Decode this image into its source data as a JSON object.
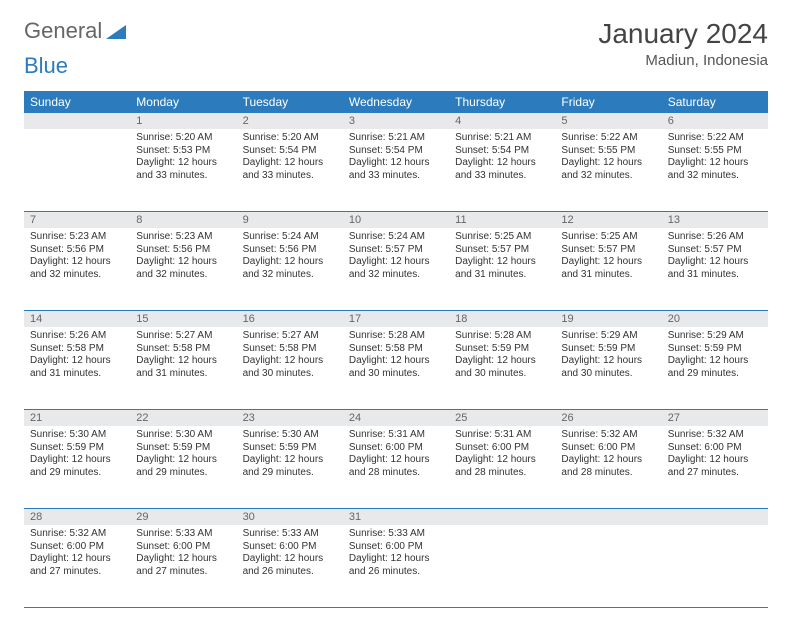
{
  "logo": {
    "text1": "General",
    "text2": "Blue"
  },
  "title": "January 2024",
  "location": "Madiun, Indonesia",
  "colors": {
    "header_bg": "#2b7bbd",
    "header_text": "#ffffff",
    "daynum_bg": "#e8e9ea",
    "border": "#2b7bbd",
    "text": "#333333"
  },
  "day_headers": [
    "Sunday",
    "Monday",
    "Tuesday",
    "Wednesday",
    "Thursday",
    "Friday",
    "Saturday"
  ],
  "weeks": [
    {
      "nums": [
        "",
        "1",
        "2",
        "3",
        "4",
        "5",
        "6"
      ],
      "cells": [
        null,
        {
          "sunrise": "Sunrise: 5:20 AM",
          "sunset": "Sunset: 5:53 PM",
          "day1": "Daylight: 12 hours",
          "day2": "and 33 minutes."
        },
        {
          "sunrise": "Sunrise: 5:20 AM",
          "sunset": "Sunset: 5:54 PM",
          "day1": "Daylight: 12 hours",
          "day2": "and 33 minutes."
        },
        {
          "sunrise": "Sunrise: 5:21 AM",
          "sunset": "Sunset: 5:54 PM",
          "day1": "Daylight: 12 hours",
          "day2": "and 33 minutes."
        },
        {
          "sunrise": "Sunrise: 5:21 AM",
          "sunset": "Sunset: 5:54 PM",
          "day1": "Daylight: 12 hours",
          "day2": "and 33 minutes."
        },
        {
          "sunrise": "Sunrise: 5:22 AM",
          "sunset": "Sunset: 5:55 PM",
          "day1": "Daylight: 12 hours",
          "day2": "and 32 minutes."
        },
        {
          "sunrise": "Sunrise: 5:22 AM",
          "sunset": "Sunset: 5:55 PM",
          "day1": "Daylight: 12 hours",
          "day2": "and 32 minutes."
        }
      ]
    },
    {
      "nums": [
        "7",
        "8",
        "9",
        "10",
        "11",
        "12",
        "13"
      ],
      "cells": [
        {
          "sunrise": "Sunrise: 5:23 AM",
          "sunset": "Sunset: 5:56 PM",
          "day1": "Daylight: 12 hours",
          "day2": "and 32 minutes."
        },
        {
          "sunrise": "Sunrise: 5:23 AM",
          "sunset": "Sunset: 5:56 PM",
          "day1": "Daylight: 12 hours",
          "day2": "and 32 minutes."
        },
        {
          "sunrise": "Sunrise: 5:24 AM",
          "sunset": "Sunset: 5:56 PM",
          "day1": "Daylight: 12 hours",
          "day2": "and 32 minutes."
        },
        {
          "sunrise": "Sunrise: 5:24 AM",
          "sunset": "Sunset: 5:57 PM",
          "day1": "Daylight: 12 hours",
          "day2": "and 32 minutes."
        },
        {
          "sunrise": "Sunrise: 5:25 AM",
          "sunset": "Sunset: 5:57 PM",
          "day1": "Daylight: 12 hours",
          "day2": "and 31 minutes."
        },
        {
          "sunrise": "Sunrise: 5:25 AM",
          "sunset": "Sunset: 5:57 PM",
          "day1": "Daylight: 12 hours",
          "day2": "and 31 minutes."
        },
        {
          "sunrise": "Sunrise: 5:26 AM",
          "sunset": "Sunset: 5:57 PM",
          "day1": "Daylight: 12 hours",
          "day2": "and 31 minutes."
        }
      ]
    },
    {
      "nums": [
        "14",
        "15",
        "16",
        "17",
        "18",
        "19",
        "20"
      ],
      "cells": [
        {
          "sunrise": "Sunrise: 5:26 AM",
          "sunset": "Sunset: 5:58 PM",
          "day1": "Daylight: 12 hours",
          "day2": "and 31 minutes."
        },
        {
          "sunrise": "Sunrise: 5:27 AM",
          "sunset": "Sunset: 5:58 PM",
          "day1": "Daylight: 12 hours",
          "day2": "and 31 minutes."
        },
        {
          "sunrise": "Sunrise: 5:27 AM",
          "sunset": "Sunset: 5:58 PM",
          "day1": "Daylight: 12 hours",
          "day2": "and 30 minutes."
        },
        {
          "sunrise": "Sunrise: 5:28 AM",
          "sunset": "Sunset: 5:58 PM",
          "day1": "Daylight: 12 hours",
          "day2": "and 30 minutes."
        },
        {
          "sunrise": "Sunrise: 5:28 AM",
          "sunset": "Sunset: 5:59 PM",
          "day1": "Daylight: 12 hours",
          "day2": "and 30 minutes."
        },
        {
          "sunrise": "Sunrise: 5:29 AM",
          "sunset": "Sunset: 5:59 PM",
          "day1": "Daylight: 12 hours",
          "day2": "and 30 minutes."
        },
        {
          "sunrise": "Sunrise: 5:29 AM",
          "sunset": "Sunset: 5:59 PM",
          "day1": "Daylight: 12 hours",
          "day2": "and 29 minutes."
        }
      ]
    },
    {
      "nums": [
        "21",
        "22",
        "23",
        "24",
        "25",
        "26",
        "27"
      ],
      "cells": [
        {
          "sunrise": "Sunrise: 5:30 AM",
          "sunset": "Sunset: 5:59 PM",
          "day1": "Daylight: 12 hours",
          "day2": "and 29 minutes."
        },
        {
          "sunrise": "Sunrise: 5:30 AM",
          "sunset": "Sunset: 5:59 PM",
          "day1": "Daylight: 12 hours",
          "day2": "and 29 minutes."
        },
        {
          "sunrise": "Sunrise: 5:30 AM",
          "sunset": "Sunset: 5:59 PM",
          "day1": "Daylight: 12 hours",
          "day2": "and 29 minutes."
        },
        {
          "sunrise": "Sunrise: 5:31 AM",
          "sunset": "Sunset: 6:00 PM",
          "day1": "Daylight: 12 hours",
          "day2": "and 28 minutes."
        },
        {
          "sunrise": "Sunrise: 5:31 AM",
          "sunset": "Sunset: 6:00 PM",
          "day1": "Daylight: 12 hours",
          "day2": "and 28 minutes."
        },
        {
          "sunrise": "Sunrise: 5:32 AM",
          "sunset": "Sunset: 6:00 PM",
          "day1": "Daylight: 12 hours",
          "day2": "and 28 minutes."
        },
        {
          "sunrise": "Sunrise: 5:32 AM",
          "sunset": "Sunset: 6:00 PM",
          "day1": "Daylight: 12 hours",
          "day2": "and 27 minutes."
        }
      ]
    },
    {
      "nums": [
        "28",
        "29",
        "30",
        "31",
        "",
        "",
        ""
      ],
      "cells": [
        {
          "sunrise": "Sunrise: 5:32 AM",
          "sunset": "Sunset: 6:00 PM",
          "day1": "Daylight: 12 hours",
          "day2": "and 27 minutes."
        },
        {
          "sunrise": "Sunrise: 5:33 AM",
          "sunset": "Sunset: 6:00 PM",
          "day1": "Daylight: 12 hours",
          "day2": "and 27 minutes."
        },
        {
          "sunrise": "Sunrise: 5:33 AM",
          "sunset": "Sunset: 6:00 PM",
          "day1": "Daylight: 12 hours",
          "day2": "and 26 minutes."
        },
        {
          "sunrise": "Sunrise: 5:33 AM",
          "sunset": "Sunset: 6:00 PM",
          "day1": "Daylight: 12 hours",
          "day2": "and 26 minutes."
        },
        null,
        null,
        null
      ]
    }
  ]
}
